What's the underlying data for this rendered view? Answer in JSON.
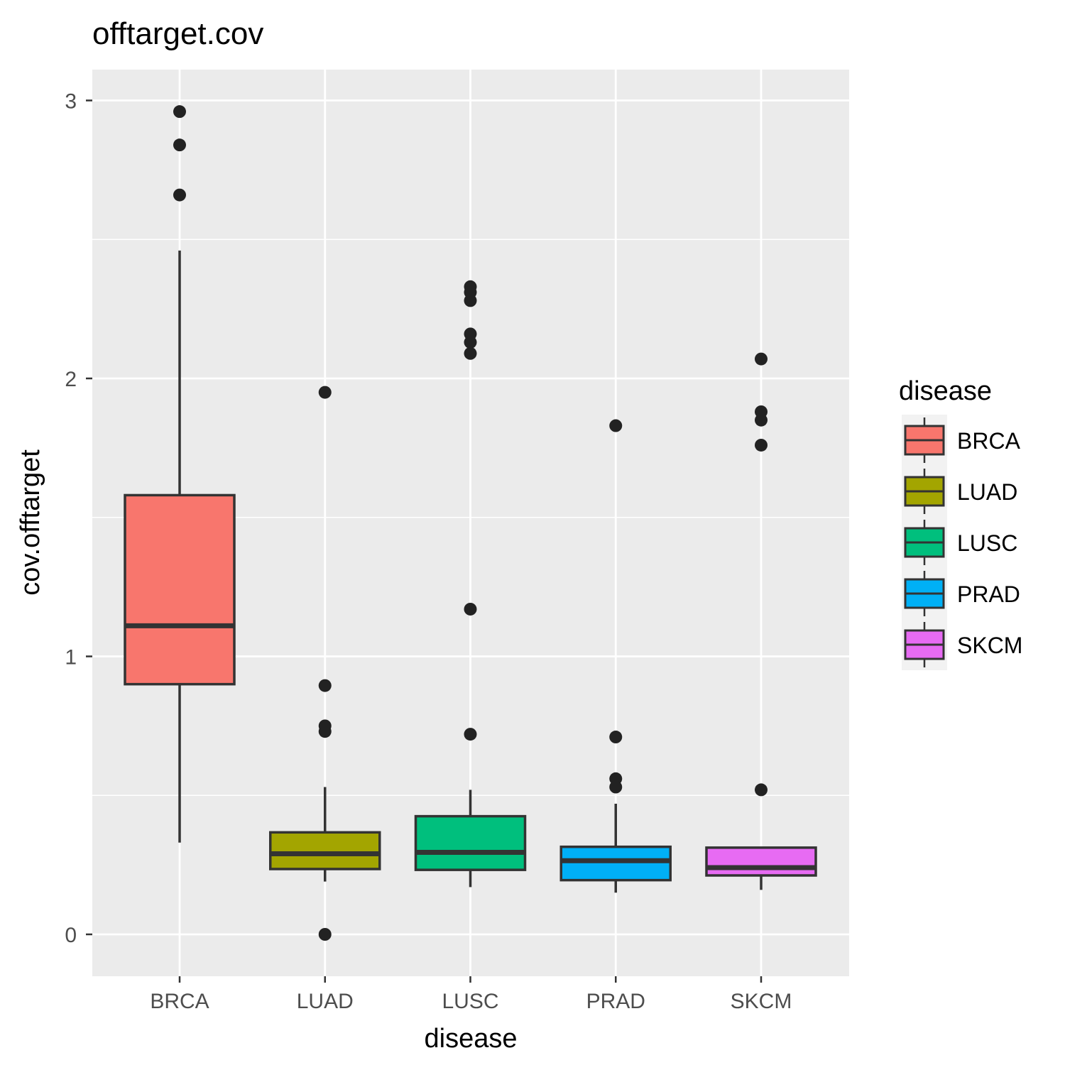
{
  "chart_data": {
    "type": "boxplot",
    "title": "offtarget.cov",
    "xlabel": "disease",
    "ylabel": "cov.offtarget",
    "categories": [
      "BRCA",
      "LUAD",
      "LUSC",
      "PRAD",
      "SKCM"
    ],
    "ylim": [
      -0.15,
      3.1
    ],
    "yticks": [
      0,
      1,
      2,
      3
    ],
    "ytick_labels": [
      "0",
      "1",
      "2",
      "3"
    ],
    "grid": true,
    "legend": {
      "title": "disease",
      "position": "right",
      "entries": [
        "BRCA",
        "LUAD",
        "LUSC",
        "PRAD",
        "SKCM"
      ]
    },
    "series": [
      {
        "name": "BRCA",
        "color": "#F8766D",
        "whisker_low": 0.33,
        "q1": 0.9,
        "median": 1.11,
        "q3": 1.58,
        "whisker_high": 2.46,
        "outliers": [
          2.96,
          2.84,
          2.66
        ]
      },
      {
        "name": "LUAD",
        "color": "#A3A500",
        "whisker_low": 0.19,
        "q1": 0.235,
        "median": 0.29,
        "q3": 0.367,
        "whisker_high": 0.53,
        "outliers": [
          1.95,
          0.895,
          0.75,
          0.73,
          0.0
        ]
      },
      {
        "name": "LUSC",
        "color": "#00BF7D",
        "whisker_low": 0.17,
        "q1": 0.232,
        "median": 0.295,
        "q3": 0.425,
        "whisker_high": 0.52,
        "outliers": [
          2.33,
          2.31,
          2.28,
          2.16,
          2.13,
          2.09,
          1.17,
          0.72
        ]
      },
      {
        "name": "PRAD",
        "color": "#00B0F6",
        "whisker_low": 0.15,
        "q1": 0.195,
        "median": 0.265,
        "q3": 0.315,
        "whisker_high": 0.47,
        "outliers": [
          1.83,
          0.71,
          0.56,
          0.53
        ]
      },
      {
        "name": "SKCM",
        "color": "#E76BF3",
        "whisker_low": 0.16,
        "q1": 0.212,
        "median": 0.24,
        "q3": 0.312,
        "whisker_high": 0.315,
        "outliers": [
          2.07,
          1.88,
          1.85,
          1.76,
          0.52
        ]
      }
    ]
  }
}
